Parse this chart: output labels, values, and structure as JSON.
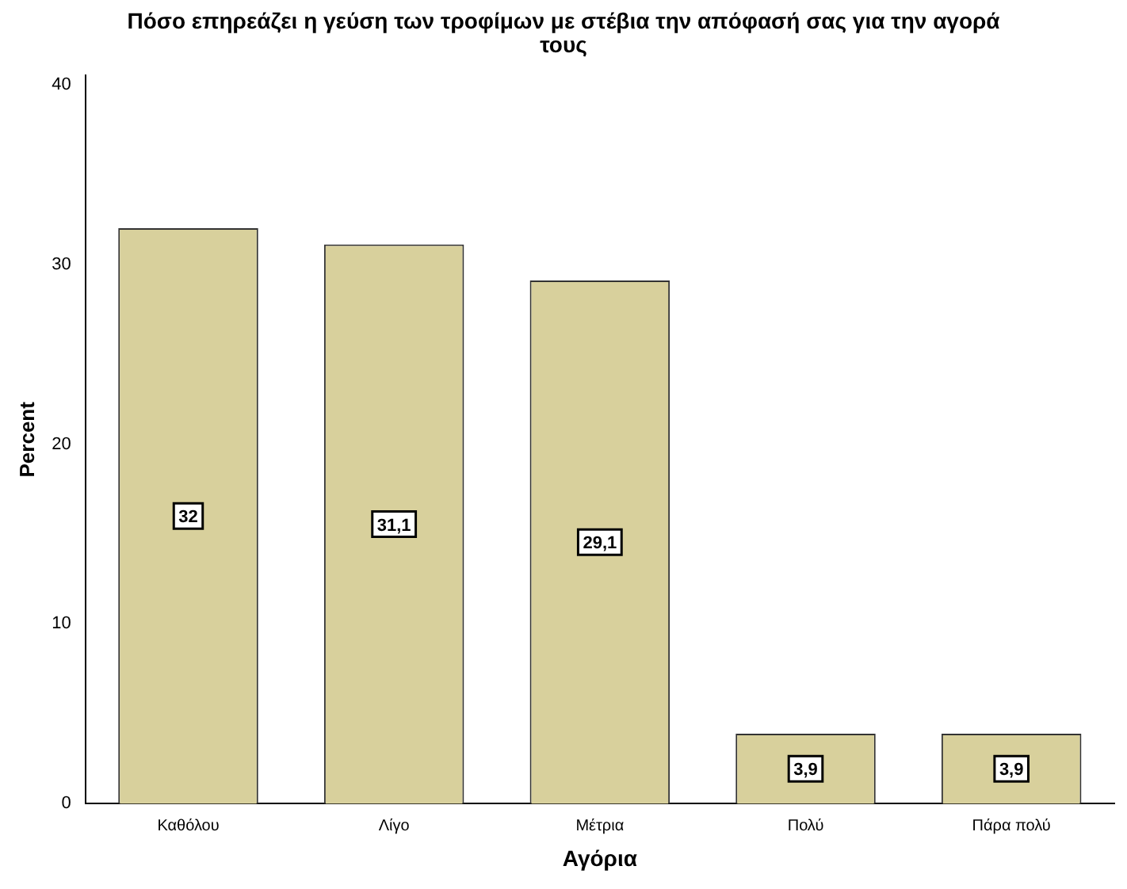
{
  "chart_data": {
    "type": "bar",
    "title": "Πόσο επηρεάζει η γεύση των τροφίμων με στέβια την απόφασή σας για την αγορά τους",
    "xlabel": "Αγόρια",
    "ylabel": "Percent",
    "categories": [
      "Καθόλου",
      "Λίγο",
      "Μέτρια",
      "Πολύ",
      "Πάρα πολύ"
    ],
    "values": [
      32,
      31.1,
      29.1,
      3.9,
      3.9
    ],
    "value_labels": [
      "32",
      "31,1",
      "29,1",
      "3,9",
      "3,9"
    ],
    "color": "#d8d09c",
    "ylim": [
      0,
      40.5
    ],
    "yticks": [
      0,
      10,
      20,
      30,
      40
    ],
    "grid": false,
    "legend": false
  }
}
